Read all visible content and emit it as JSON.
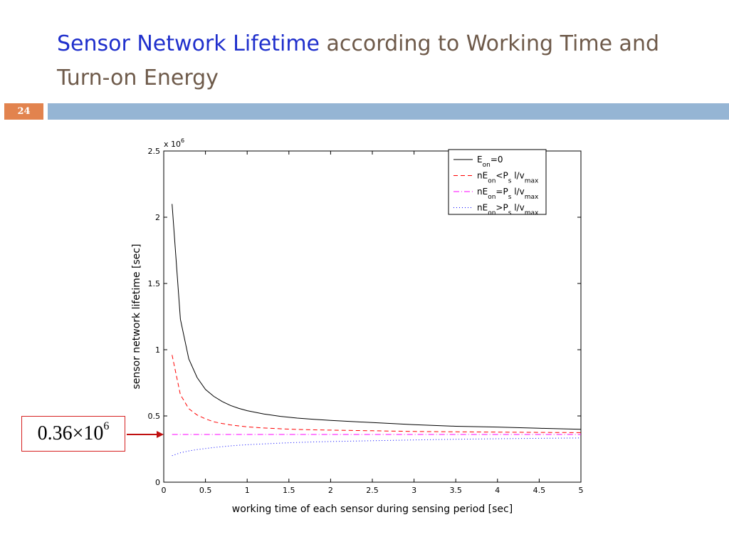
{
  "slide": {
    "title_highlight": "Sensor Network Lifetime",
    "title_rest": " according to Working Time and Turn-on Energy",
    "page_number": "24",
    "accent_bar_color": "#95b5d4",
    "page_box_color": "#e2834e"
  },
  "callout": {
    "mantissa": "0.36×10",
    "exponent": "6",
    "border_color": "#d62020"
  },
  "chart_data": {
    "type": "line",
    "xlabel": "working time of each sensor during sensing period [sec]",
    "ylabel": "sensor network lifetime [sec]",
    "y_multiplier_base": "x 10",
    "y_multiplier_exp": "6",
    "xlim": [
      0,
      5
    ],
    "ylim": [
      0,
      2.5
    ],
    "xticks": [
      0,
      0.5,
      1,
      1.5,
      2,
      2.5,
      3,
      3.5,
      4,
      4.5,
      5
    ],
    "xtick_labels": [
      "0",
      "0.5",
      "1",
      "1.5",
      "2",
      "2.5",
      "3",
      "3.5",
      "4",
      "4.5",
      "5"
    ],
    "yticks": [
      0,
      0.5,
      1,
      1.5,
      2,
      2.5
    ],
    "ytick_labels": [
      "0",
      "0.5",
      "1",
      "1.5",
      "2",
      "2.5"
    ],
    "grid": false,
    "legend_position": "top-right",
    "x": [
      0.1,
      0.2,
      0.3,
      0.4,
      0.5,
      0.6,
      0.7,
      0.8,
      0.9,
      1.0,
      1.2,
      1.4,
      1.6,
      1.8,
      2.0,
      2.5,
      3.0,
      3.5,
      4.0,
      4.5,
      5.0
    ],
    "series": [
      {
        "name": "E_on=0",
        "legend_parts": [
          [
            "E",
            "n"
          ],
          [
            "on",
            "s"
          ],
          [
            "=0",
            "n"
          ]
        ],
        "color": "#000000",
        "dash": "",
        "values": [
          2.1,
          1.23,
          0.93,
          0.79,
          0.7,
          0.648,
          0.609,
          0.579,
          0.557,
          0.54,
          0.515,
          0.497,
          0.484,
          0.474,
          0.466,
          0.45,
          0.434,
          0.422,
          0.416,
          0.407,
          0.399
        ]
      },
      {
        "name": "nE_on<P_s l/v_max",
        "legend_parts": [
          [
            "nE",
            "n"
          ],
          [
            "on",
            "s"
          ],
          [
            "<P",
            "n"
          ],
          [
            "s",
            "s"
          ],
          [
            " l/v",
            "n"
          ],
          [
            "max",
            "s"
          ]
        ],
        "color": "#ff0000",
        "dash": "6,4",
        "values": [
          0.96,
          0.66,
          0.555,
          0.507,
          0.478,
          0.456,
          0.443,
          0.432,
          0.425,
          0.418,
          0.409,
          0.403,
          0.398,
          0.395,
          0.393,
          0.388,
          0.383,
          0.38,
          0.378,
          0.376,
          0.374
        ]
      },
      {
        "name": "nE_on=P_s l/v_max",
        "legend_parts": [
          [
            "nE",
            "n"
          ],
          [
            "on",
            "s"
          ],
          [
            "=P",
            "n"
          ],
          [
            "s",
            "s"
          ],
          [
            " l/v",
            "n"
          ],
          [
            "max",
            "s"
          ]
        ],
        "color": "#ff00ff",
        "dash": "8,3,1,3",
        "values": [
          0.36,
          0.36,
          0.36,
          0.36,
          0.36,
          0.36,
          0.36,
          0.36,
          0.36,
          0.36,
          0.36,
          0.36,
          0.36,
          0.36,
          0.36,
          0.36,
          0.36,
          0.36,
          0.36,
          0.36,
          0.36
        ]
      },
      {
        "name": "nE_on>P_s l/v_max",
        "legend_parts": [
          [
            "nE",
            "n"
          ],
          [
            "on",
            "s"
          ],
          [
            ">P",
            "n"
          ],
          [
            "s",
            "s"
          ],
          [
            " l/v",
            "n"
          ],
          [
            "max",
            "s"
          ]
        ],
        "color": "#0000ff",
        "dash": "1,3",
        "values": [
          0.2,
          0.222,
          0.236,
          0.246,
          0.254,
          0.262,
          0.268,
          0.274,
          0.279,
          0.283,
          0.289,
          0.295,
          0.3,
          0.304,
          0.307,
          0.313,
          0.319,
          0.324,
          0.328,
          0.331,
          0.334
        ]
      }
    ]
  }
}
